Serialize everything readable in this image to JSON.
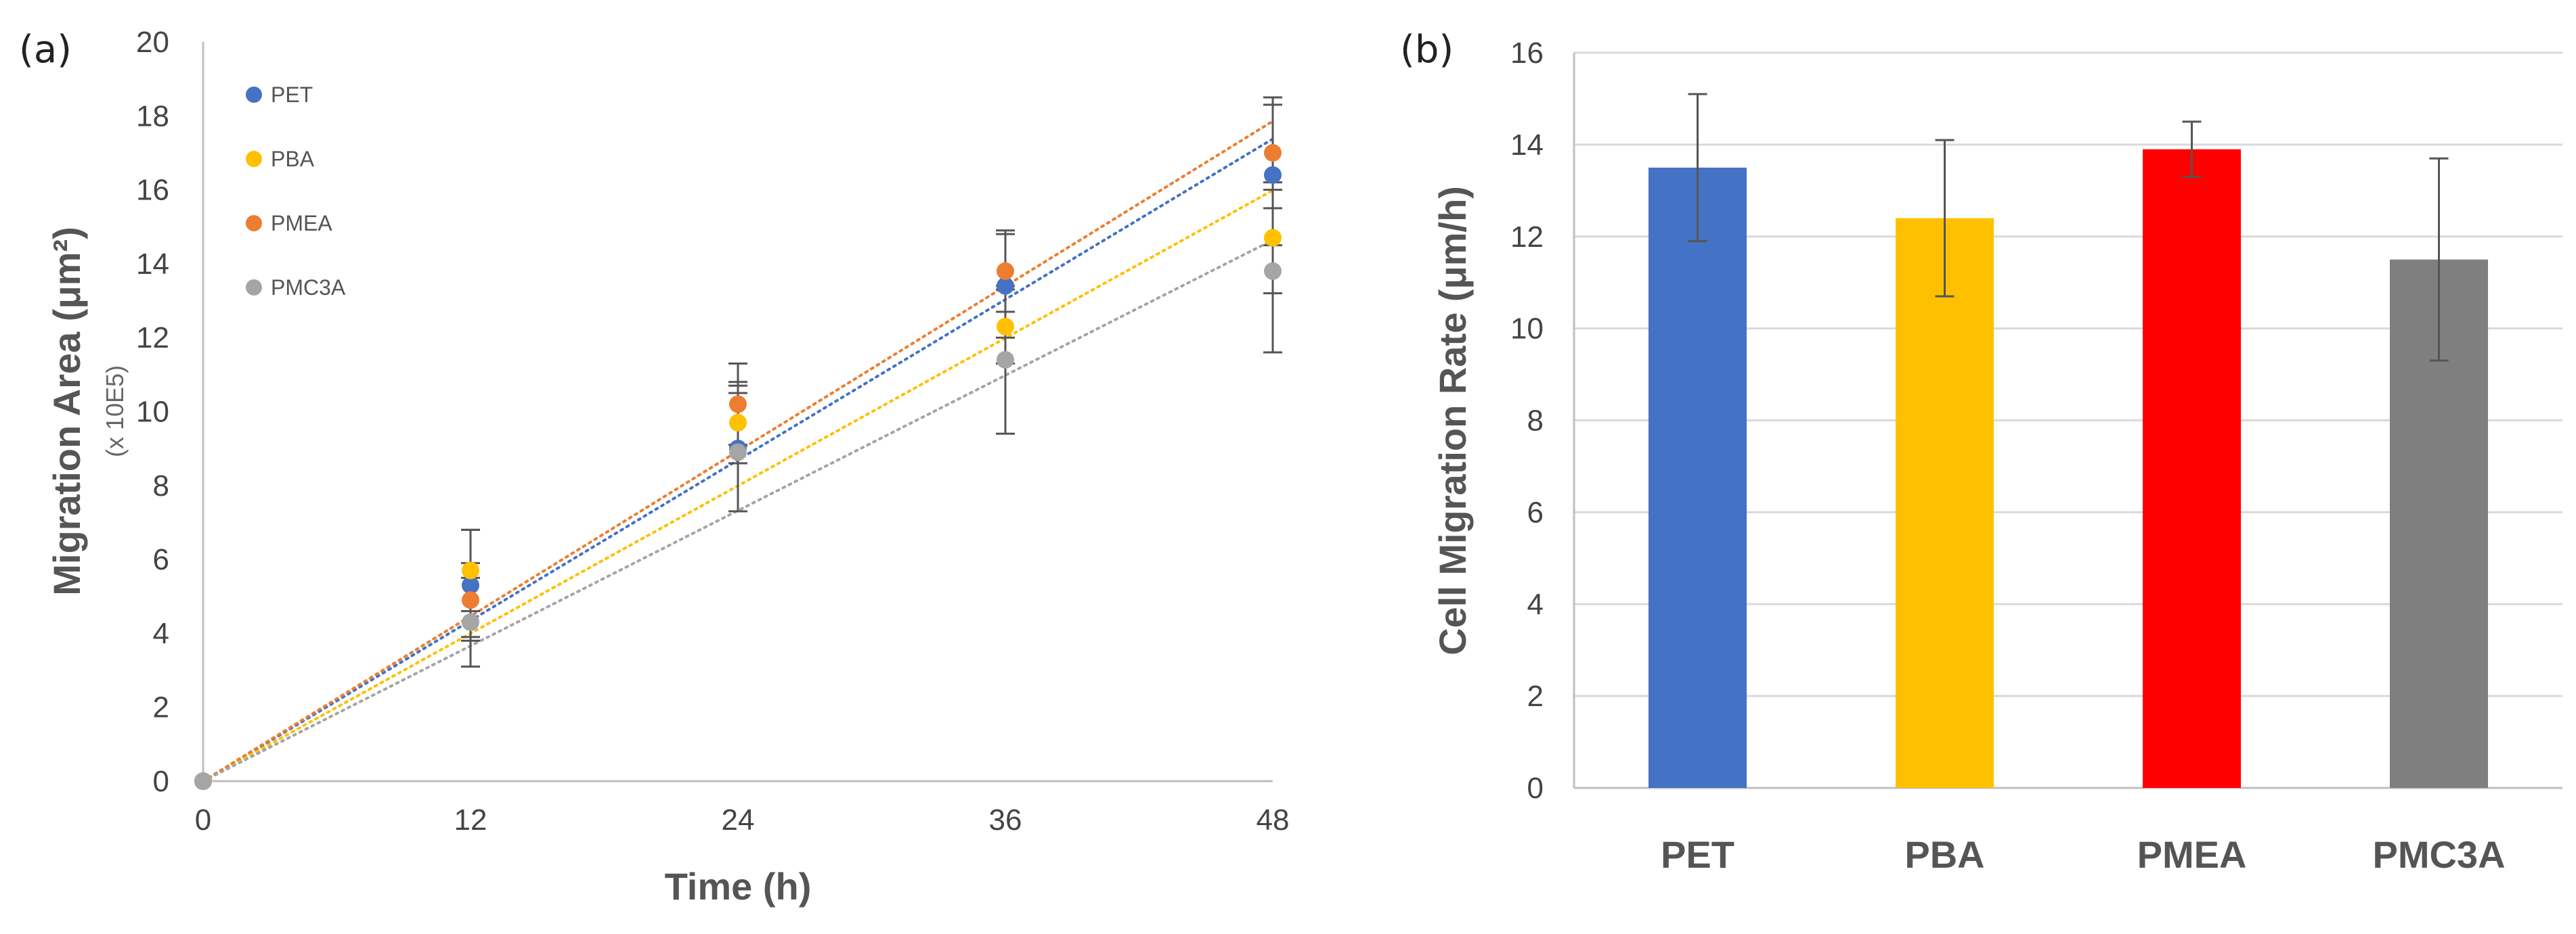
{
  "chart_data": [
    {
      "panel_label": "(a)",
      "type": "scatter",
      "x": [
        0,
        12,
        24,
        36,
        48
      ],
      "xticks": [
        "0",
        "12",
        "24",
        "36",
        "48"
      ],
      "xlim": [
        0,
        48
      ],
      "ylim": [
        0,
        20
      ],
      "yticks": [
        "0",
        "2",
        "4",
        "6",
        "8",
        "10",
        "12",
        "14",
        "16",
        "18",
        "20"
      ],
      "xlabel": "Time (h)",
      "ylabel": "Migration Area (μm²)",
      "ylabel_unit": "(x 10E5)",
      "grid": "none",
      "legend_position": "top-left",
      "series": [
        {
          "name": "PET",
          "color": "#4472C4",
          "values": [
            0,
            5.3,
            9.0,
            13.4,
            16.4
          ],
          "errors": [
            0,
            1.5,
            1.7,
            1.4,
            1.9
          ],
          "trend_slope": 0.362
        },
        {
          "name": "PBA",
          "color": "#FFC000",
          "values": [
            0,
            5.7,
            9.7,
            12.3,
            14.7
          ],
          "errors": [
            0,
            1.1,
            1.1,
            1.0,
            1.5
          ],
          "trend_slope": 0.333
        },
        {
          "name": "PMEA",
          "color": "#ED7D31",
          "values": [
            0,
            4.9,
            10.2,
            13.8,
            17.0
          ],
          "errors": [
            0,
            1.0,
            1.1,
            1.1,
            1.5
          ],
          "trend_slope": 0.372
        },
        {
          "name": "PMC3A",
          "color": "#A5A5A5",
          "values": [
            0,
            4.3,
            8.9,
            11.4,
            13.8
          ],
          "errors": [
            0,
            1.2,
            1.6,
            2.0,
            2.2
          ],
          "trend_slope": 0.305
        }
      ]
    },
    {
      "panel_label": "(b)",
      "type": "bar",
      "categories": [
        "PET",
        "PBA",
        "PMEA",
        "PMC3A"
      ],
      "values": [
        13.5,
        12.4,
        13.9,
        11.5
      ],
      "errors": [
        1.6,
        1.7,
        0.6,
        2.2
      ],
      "colors": [
        "#4472C4",
        "#FFC000",
        "#FF0000",
        "#7F7F7F"
      ],
      "ylim": [
        0,
        16
      ],
      "yticks": [
        "0",
        "2",
        "4",
        "6",
        "8",
        "10",
        "12",
        "14",
        "16"
      ],
      "ylabel": "Cell Migration Rate (μm/h)",
      "xlabel": "",
      "grid": "horizontal"
    }
  ]
}
